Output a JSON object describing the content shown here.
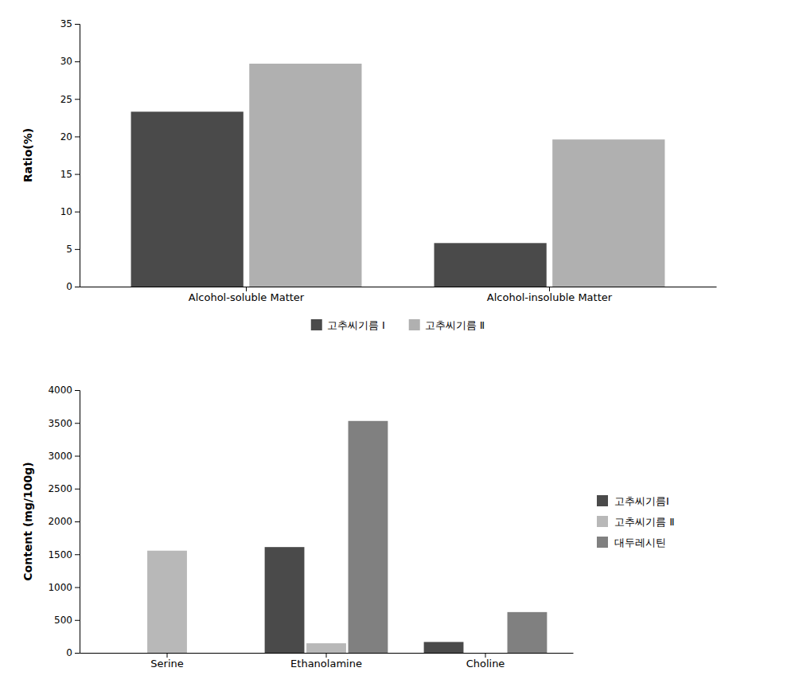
{
  "chart_data": [
    {
      "type": "bar",
      "categories": [
        "Alcohol-soluble Matter",
        "Alcohol-insoluble Matter"
      ],
      "series": [
        {
          "name": "고추씨기름 Ⅰ",
          "color": "#4a4a4a",
          "values": [
            23.3,
            5.8
          ]
        },
        {
          "name": "고추씨기름 Ⅱ",
          "color": "#b0b0b0",
          "values": [
            29.7,
            19.6
          ]
        }
      ],
      "ylabel": "Ratio(%)",
      "ylim": [
        0,
        35
      ],
      "yticks": [
        0,
        5,
        10,
        15,
        20,
        25,
        30,
        35
      ],
      "grid": false,
      "legend": "bottom"
    },
    {
      "type": "bar",
      "categories": [
        "Serine",
        "Ethanolamine",
        "Choline"
      ],
      "series": [
        {
          "name": "고추씨기름Ⅰ",
          "color": "#4a4a4a",
          "values": [
            0,
            1610,
            165
          ]
        },
        {
          "name": "고추씨기름 Ⅱ",
          "color": "#b8b8b8",
          "values": [
            1555,
            145,
            0
          ]
        },
        {
          "name": "대두레시틴",
          "color": "#808080",
          "values": [
            0,
            3530,
            620
          ]
        }
      ],
      "ylabel": "Content (mg/100g)",
      "ylim": [
        0,
        4000
      ],
      "yticks": [
        0,
        500,
        1000,
        1500,
        2000,
        2500,
        3000,
        3500,
        4000
      ],
      "grid": false,
      "legend": "right"
    }
  ]
}
